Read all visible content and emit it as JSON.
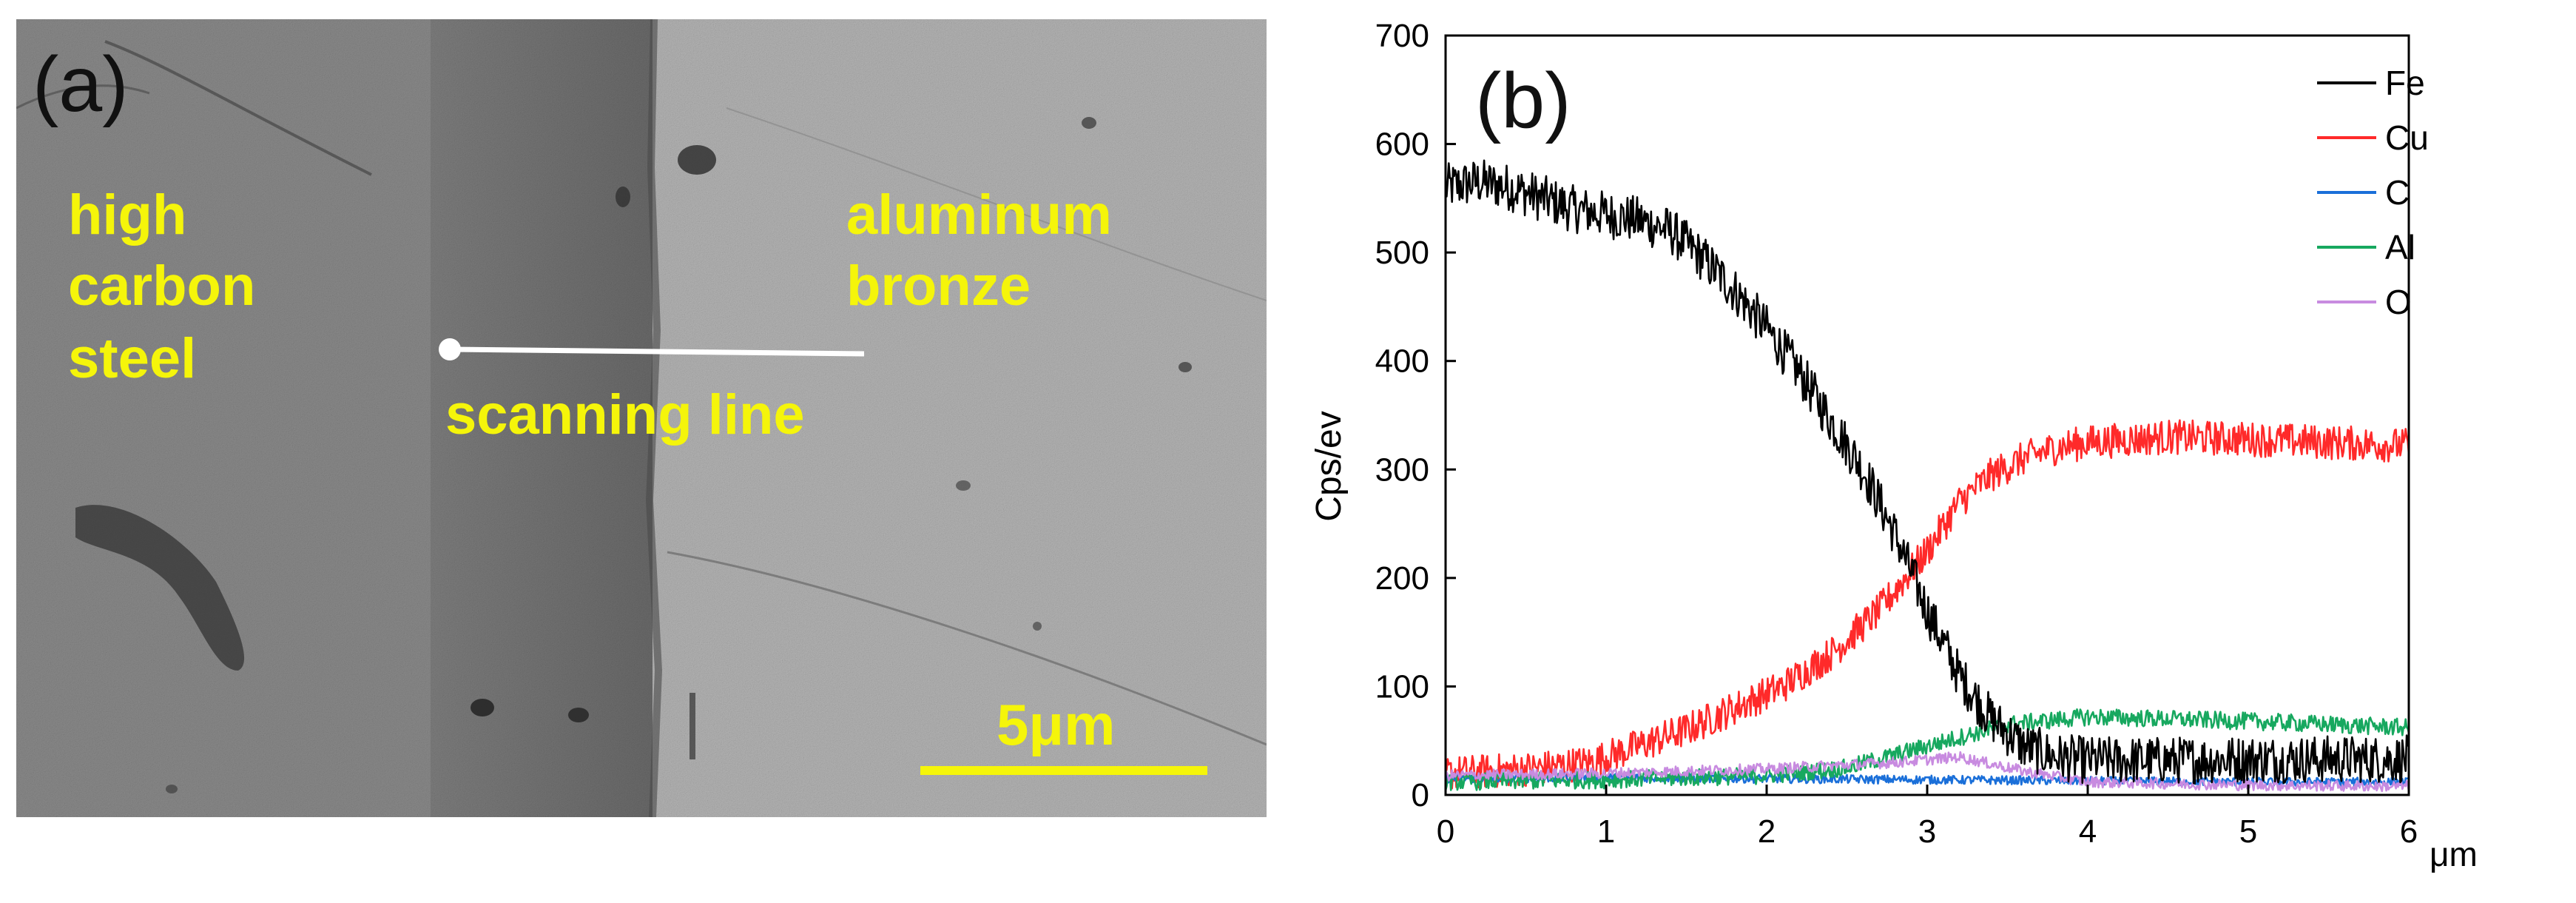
{
  "panel_a": {
    "tag": "(a)",
    "label_left": [
      "high",
      "carbon",
      "steel"
    ],
    "label_right": [
      "aluminum",
      "bronze"
    ],
    "scan_label": "scanning line",
    "scale_bar_label": "5μm",
    "label_color": "#f5f50a"
  },
  "panel_b": {
    "tag": "(b)"
  },
  "chart_data": {
    "type": "line",
    "xlabel": "μm",
    "ylabel": "Cps/ev",
    "xlim": [
      0,
      6
    ],
    "ylim": [
      0,
      700
    ],
    "x_ticks": [
      "0",
      "1",
      "2",
      "3",
      "4",
      "5",
      "6"
    ],
    "y_ticks": [
      "0",
      "100",
      "200",
      "300",
      "400",
      "500",
      "600",
      "700"
    ],
    "legend_position": "top-right",
    "grid": false,
    "series": [
      {
        "name": "Fe",
        "color": "#000000",
        "noise": 22,
        "x": [
          0,
          0.2,
          0.4,
          0.6,
          0.8,
          1.0,
          1.2,
          1.4,
          1.6,
          1.8,
          2.0,
          2.2,
          2.4,
          2.6,
          2.8,
          3.0,
          3.2,
          3.4,
          3.6,
          3.8,
          4.0,
          4.5,
          5.0,
          5.5,
          6.0
        ],
        "values": [
          560,
          565,
          560,
          550,
          540,
          535,
          530,
          520,
          495,
          465,
          430,
          390,
          345,
          300,
          240,
          170,
          110,
          70,
          45,
          35,
          32,
          32,
          33,
          33,
          33
        ]
      },
      {
        "name": "Cu",
        "color": "#ff2a2a",
        "noise": 16,
        "x": [
          0,
          0.3,
          0.6,
          0.9,
          1.2,
          1.5,
          1.8,
          2.1,
          2.4,
          2.7,
          3.0,
          3.2,
          3.4,
          3.6,
          3.8,
          4.0,
          4.5,
          5.0,
          5.5,
          6.0
        ],
        "values": [
          20,
          22,
          25,
          30,
          45,
          60,
          80,
          100,
          130,
          170,
          225,
          270,
          295,
          310,
          320,
          325,
          330,
          328,
          325,
          322
        ]
      },
      {
        "name": "C",
        "color": "#1a6fd9",
        "noise": 4,
        "x": [
          0,
          1.0,
          2.0,
          3.0,
          4.0,
          5.0,
          6.0
        ],
        "values": [
          15,
          16,
          15,
          14,
          13,
          12,
          12
        ]
      },
      {
        "name": "Al",
        "color": "#17a85f",
        "noise": 8,
        "x": [
          0,
          1.0,
          2.0,
          2.5,
          3.0,
          3.5,
          4.0,
          4.5,
          5.0,
          5.5,
          6.0
        ],
        "values": [
          12,
          14,
          18,
          25,
          45,
          65,
          72,
          70,
          68,
          65,
          62
        ]
      },
      {
        "name": "O",
        "color": "#c88be0",
        "noise": 5,
        "x": [
          0,
          1.0,
          2.0,
          2.8,
          3.2,
          3.6,
          4.0,
          5.0,
          6.0
        ],
        "values": [
          18,
          20,
          24,
          30,
          35,
          22,
          12,
          9,
          8
        ]
      }
    ]
  }
}
